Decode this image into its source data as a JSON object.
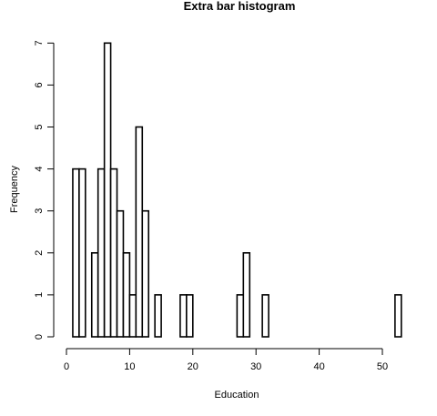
{
  "chart_data": {
    "type": "bar",
    "title": "Extra bar histogram",
    "xlabel": "Education",
    "ylabel": "Frequency",
    "xlim": [
      0,
      53
    ],
    "ylim": [
      0,
      7
    ],
    "x_ticks": [
      0,
      10,
      20,
      30,
      40,
      50
    ],
    "y_ticks": [
      0,
      1,
      2,
      3,
      4,
      5,
      6,
      7
    ],
    "grid": false,
    "bin_width": 1,
    "bars": [
      {
        "x": 1,
        "value": 4
      },
      {
        "x": 2,
        "value": 4
      },
      {
        "x": 4,
        "value": 2
      },
      {
        "x": 5,
        "value": 4
      },
      {
        "x": 6,
        "value": 7
      },
      {
        "x": 7,
        "value": 4
      },
      {
        "x": 8,
        "value": 3
      },
      {
        "x": 9,
        "value": 2
      },
      {
        "x": 10,
        "value": 1
      },
      {
        "x": 11,
        "value": 5
      },
      {
        "x": 12,
        "value": 3
      },
      {
        "x": 14,
        "value": 1
      },
      {
        "x": 18,
        "value": 1
      },
      {
        "x": 19,
        "value": 1
      },
      {
        "x": 27,
        "value": 1
      },
      {
        "x": 28,
        "value": 2
      },
      {
        "x": 31,
        "value": 1
      },
      {
        "x": 52,
        "value": 1
      }
    ]
  }
}
